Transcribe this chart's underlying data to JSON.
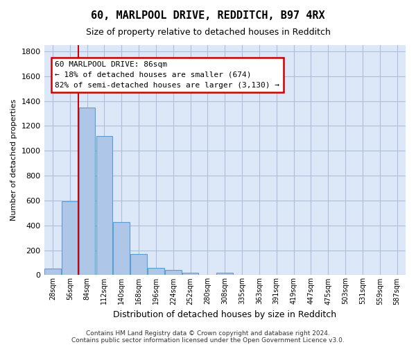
{
  "title1": "60, MARLPOOL DRIVE, REDDITCH, B97 4RX",
  "title2": "Size of property relative to detached houses in Redditch",
  "xlabel": "Distribution of detached houses by size in Redditch",
  "ylabel": "Number of detached properties",
  "bins": [
    "28sqm",
    "56sqm",
    "84sqm",
    "112sqm",
    "140sqm",
    "168sqm",
    "196sqm",
    "224sqm",
    "252sqm",
    "280sqm",
    "308sqm",
    "335sqm",
    "363sqm",
    "391sqm",
    "419sqm",
    "447sqm",
    "475sqm",
    "503sqm",
    "531sqm",
    "559sqm",
    "587sqm"
  ],
  "bar_values": [
    50,
    595,
    1350,
    1120,
    425,
    170,
    60,
    40,
    20,
    0,
    20,
    0,
    0,
    0,
    0,
    0,
    0,
    0,
    0,
    0,
    0
  ],
  "bar_color": "#aec6e8",
  "bar_edge_color": "#5a9fd4",
  "vline_pos": 1.5,
  "vline_color": "#cc0000",
  "ylim": [
    0,
    1850
  ],
  "yticks": [
    0,
    200,
    400,
    600,
    800,
    1000,
    1200,
    1400,
    1600,
    1800
  ],
  "annotation_text": "60 MARLPOOL DRIVE: 86sqm\n← 18% of detached houses are smaller (674)\n82% of semi-detached houses are larger (3,130) →",
  "annotation_box_color": "#cc0000",
  "annotation_bg": "#ffffff",
  "footer": "Contains HM Land Registry data © Crown copyright and database right 2024.\nContains public sector information licensed under the Open Government Licence v3.0.",
  "bg_color": "#dce8f8",
  "grid_color": "#b0bfd8"
}
